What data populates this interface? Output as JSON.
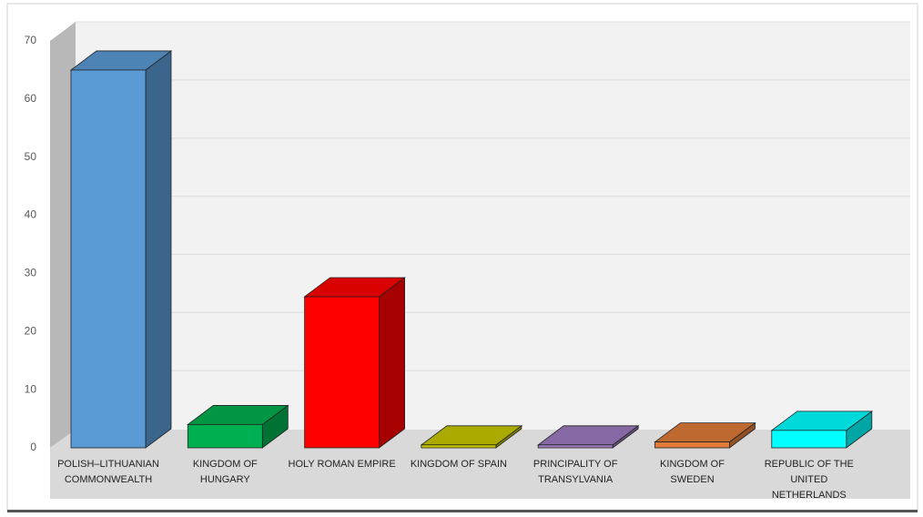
{
  "chart_data": {
    "type": "bar3d",
    "categories": [
      "POLISH–LITHUANIAN COMMONWEALTH",
      "KINGDOM OF HUNGARY",
      "HOLY ROMAN EMPIRE",
      "KINGDOM OF SPAIN",
      "PRINCIPALITY OF TRANSYLVANIA",
      "KINGDOM OF SWEDEN",
      "REPUBLIC OF THE UNITED NETHERLANDS"
    ],
    "values": [
      65,
      4,
      26,
      0.5,
      0.5,
      1,
      3
    ],
    "colors": [
      "#5b9bd5",
      "#00b050",
      "#ff0000",
      "#c8c800",
      "#9e7cc1",
      "#e07b39",
      "#00ffff"
    ],
    "ylim": [
      0,
      70
    ],
    "yticks": [
      0,
      10,
      20,
      30,
      40,
      50,
      60,
      70
    ],
    "grid": true
  }
}
